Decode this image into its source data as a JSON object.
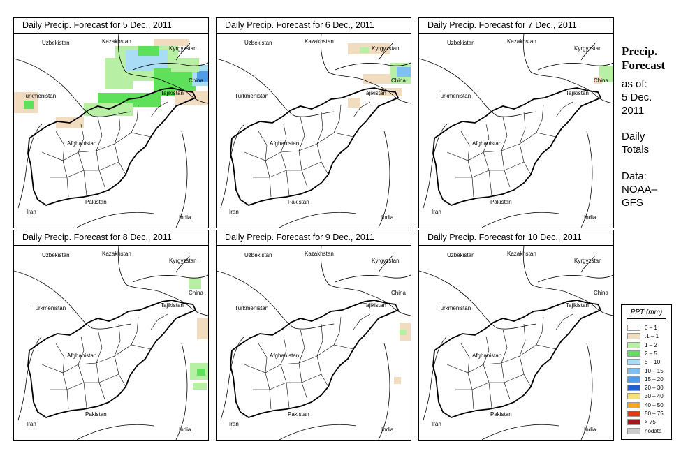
{
  "panels": [
    {
      "title": "Daily Precip. Forecast for  5 Dec., 2011"
    },
    {
      "title": "Daily Precip. Forecast for  6 Dec., 2011"
    },
    {
      "title": "Daily Precip. Forecast for  7 Dec., 2011"
    },
    {
      "title": "Daily Precip. Forecast for  8 Dec., 2011"
    },
    {
      "title": "Daily Precip. Forecast for  9 Dec., 2011"
    },
    {
      "title": "Daily Precip. Forecast for  10 Dec., 2011"
    }
  ],
  "countries": {
    "uzbekistan": "Uzbekistan",
    "kazakhstan": "Kazakhstan",
    "kyrgyzstan": "Kyrgyzstan",
    "china": "China",
    "turkmenistan": "Turkmenistan",
    "tajikistan": "Tajikistan",
    "afghanistan": "Afghanistan",
    "iran": "Iran",
    "pakistan": "Pakistan",
    "india": "India"
  },
  "sidebar": {
    "title_line1": "Precip.",
    "title_line2": "Forecast",
    "asof_label": "as of:",
    "asof_date": "5 Dec.",
    "asof_year": "2011",
    "daily_line1": "Daily",
    "daily_line2": "Totals",
    "data_label": "Data:",
    "data_source1": "NOAA–",
    "data_source2": "GFS"
  },
  "legend": {
    "title": "PPT (mm)",
    "items": [
      {
        "label": "0 – 1",
        "color": "#ffffff"
      },
      {
        "label": ".1 – 1",
        "color": "#f2dcc0"
      },
      {
        "label": "1 – 2",
        "color": "#b7f0a4"
      },
      {
        "label": "2 – 5",
        "color": "#5fe05a"
      },
      {
        "label": "5 – 10",
        "color": "#a9ddf5"
      },
      {
        "label": "10 – 15",
        "color": "#7ec0f2"
      },
      {
        "label": "15 – 20",
        "color": "#4f9de8"
      },
      {
        "label": "20 – 30",
        "color": "#1f5fd0"
      },
      {
        "label": "30 – 40",
        "color": "#f4e07a"
      },
      {
        "label": "40 – 50",
        "color": "#f5a623"
      },
      {
        "label": "50 – 75",
        "color": "#e8380d"
      },
      {
        "label": "> 75",
        "color": "#a1171b"
      },
      {
        "label": "nodata",
        "color": "#cccccc"
      }
    ]
  }
}
